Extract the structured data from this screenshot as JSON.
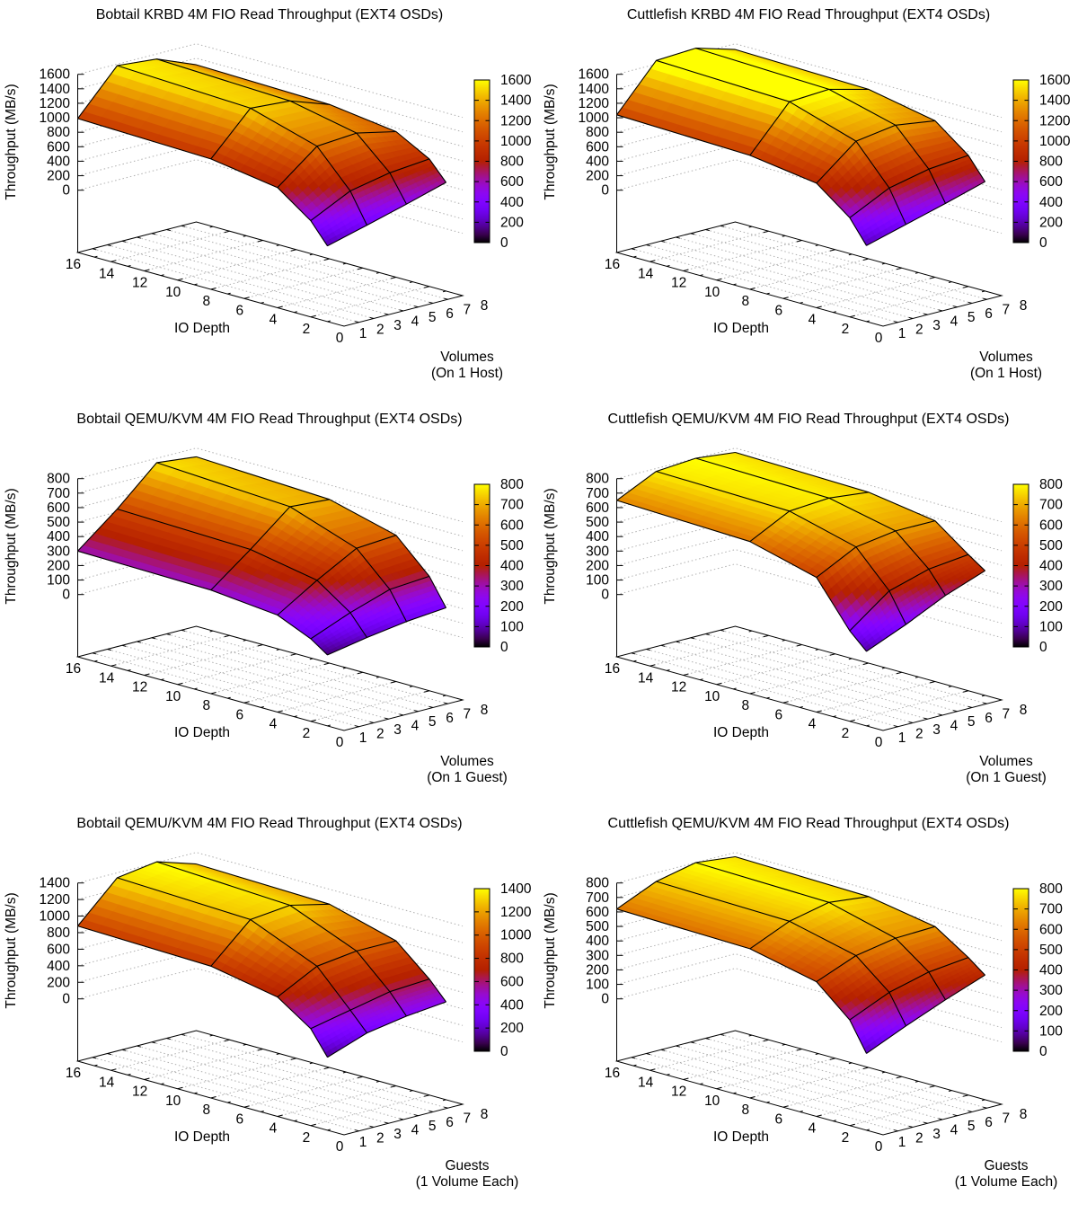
{
  "background": "#ffffff",
  "text_color": "#000000",
  "palette": {
    "type": "gnuplot pm3d rgbformulae 7,5,15",
    "low": "#000000",
    "mid": "#c83c00",
    "high": "#ffff00"
  },
  "chart_data": [
    {
      "type": "surface",
      "title": "Bobtail KRBD 4M FIO Read Throughput (EXT4 OSDs)",
      "xlabel": "IO Depth",
      "ylabel_line1": "Volumes",
      "ylabel_line2": "(On 1 Host)",
      "zlabel": "Throughput (MB/s)",
      "units": "MB/s",
      "x_ticks": [
        16,
        14,
        12,
        10,
        8,
        6,
        4,
        2,
        0
      ],
      "y_ticks": [
        0,
        1,
        2,
        3,
        4,
        5,
        6,
        7,
        8
      ],
      "z_ticks": [
        0,
        200,
        400,
        600,
        800,
        1000,
        1200,
        1400,
        1600
      ],
      "colorbar_ticks": [
        0,
        200,
        400,
        600,
        800,
        1000,
        1200,
        1400,
        1600
      ],
      "z_max": 1600,
      "z_step": 200,
      "io_depths": [
        16,
        8,
        4,
        2,
        1
      ],
      "series": [
        {
          "count": 1,
          "values": [
            990,
            940,
            800,
            470,
            185
          ]
        },
        {
          "count": 2,
          "values": [
            1580,
            1500,
            1230,
            740,
            330
          ]
        },
        {
          "count": 4,
          "values": [
            1530,
            1460,
            1270,
            850,
            480
          ]
        },
        {
          "count": 8,
          "values": [
            1310,
            1270,
            1150,
            900,
            640
          ]
        }
      ]
    },
    {
      "type": "surface",
      "title": "Cuttlefish KRBD 4M FIO Read Throughput (EXT4 OSDs)",
      "xlabel": "IO Depth",
      "ylabel_line1": "Volumes",
      "ylabel_line2": "(On 1 Host)",
      "zlabel": "Throughput (MB/s)",
      "units": "MB/s",
      "x_ticks": [
        16,
        14,
        12,
        10,
        8,
        6,
        4,
        2,
        0
      ],
      "y_ticks": [
        0,
        1,
        2,
        3,
        4,
        5,
        6,
        7,
        8
      ],
      "z_ticks": [
        0,
        200,
        400,
        600,
        800,
        1000,
        1200,
        1400,
        1600
      ],
      "colorbar_ticks": [
        0,
        200,
        400,
        600,
        800,
        1000,
        1200,
        1400,
        1600
      ],
      "z_max": 1600,
      "z_step": 200,
      "io_depths": [
        16,
        8,
        4,
        2,
        1
      ],
      "series": [
        {
          "count": 1,
          "values": [
            1040,
            990,
            860,
            510,
            190
          ]
        },
        {
          "count": 2,
          "values": [
            1650,
            1590,
            1300,
            780,
            340
          ]
        },
        {
          "count": 4,
          "values": [
            1680,
            1620,
            1380,
            900,
            490
          ]
        },
        {
          "count": 8,
          "values": [
            1520,
            1480,
            1300,
            950,
            650
          ]
        }
      ]
    },
    {
      "type": "surface",
      "title": "Bobtail QEMU/KVM 4M FIO Read Throughput (EXT4 OSDs)",
      "xlabel": "IO Depth",
      "ylabel_line1": "Volumes",
      "ylabel_line2": "(On 1 Guest)",
      "zlabel": "Throughput (MB/s)",
      "units": "MB/s",
      "x_ticks": [
        16,
        14,
        12,
        10,
        8,
        6,
        4,
        2,
        0
      ],
      "y_ticks": [
        0,
        1,
        2,
        3,
        4,
        5,
        6,
        7,
        8
      ],
      "z_ticks": [
        0,
        100,
        200,
        300,
        400,
        500,
        600,
        700,
        800
      ],
      "colorbar_ticks": [
        0,
        100,
        200,
        300,
        400,
        500,
        600,
        700,
        800
      ],
      "z_max": 800,
      "z_step": 100,
      "io_depths": [
        16,
        8,
        4,
        2,
        1
      ],
      "series": [
        {
          "count": 1,
          "values": [
            300,
            285,
            240,
            140,
            60
          ]
        },
        {
          "count": 2,
          "values": [
            520,
            495,
            410,
            250,
            110
          ]
        },
        {
          "count": 4,
          "values": [
            770,
            720,
            560,
            340,
            150
          ]
        },
        {
          "count": 8,
          "values": [
            740,
            700,
            580,
            360,
            175
          ]
        }
      ]
    },
    {
      "type": "surface",
      "title": "Cuttlefish QEMU/KVM 4M FIO Read Throughput (EXT4 OSDs)",
      "xlabel": "IO Depth",
      "ylabel_line1": "Volumes",
      "ylabel_line2": "(On 1 Guest)",
      "zlabel": "Throughput (MB/s)",
      "units": "MB/s",
      "x_ticks": [
        16,
        14,
        12,
        10,
        8,
        6,
        4,
        2,
        0
      ],
      "y_ticks": [
        0,
        1,
        2,
        3,
        4,
        5,
        6,
        7,
        8
      ],
      "z_ticks": [
        0,
        100,
        200,
        300,
        400,
        500,
        600,
        700,
        800
      ],
      "colorbar_ticks": [
        0,
        100,
        200,
        300,
        400,
        500,
        600,
        700,
        800
      ],
      "z_max": 800,
      "z_step": 100,
      "io_depths": [
        16,
        8,
        4,
        2,
        1
      ],
      "series": [
        {
          "count": 1,
          "values": [
            650,
            620,
            500,
            195,
            85
          ]
        },
        {
          "count": 2,
          "values": [
            780,
            760,
            640,
            400,
            200
          ]
        },
        {
          "count": 4,
          "values": [
            800,
            780,
            680,
            480,
            330
          ]
        },
        {
          "count": 8,
          "values": [
            770,
            750,
            680,
            510,
            430
          ]
        }
      ]
    },
    {
      "type": "surface",
      "title": "Bobtail QEMU/KVM 4M FIO Read Throughput (EXT4 OSDs)",
      "xlabel": "IO Depth",
      "ylabel_line1": "Guests",
      "ylabel_line2": "(1 Volume Each)",
      "zlabel": "Throughput (MB/s)",
      "units": "MB/s",
      "x_ticks": [
        16,
        14,
        12,
        10,
        8,
        6,
        4,
        2,
        0
      ],
      "y_ticks": [
        0,
        1,
        2,
        3,
        4,
        5,
        6,
        7,
        8
      ],
      "z_ticks": [
        0,
        200,
        400,
        600,
        800,
        1000,
        1200,
        1400
      ],
      "colorbar_ticks": [
        0,
        200,
        400,
        600,
        800,
        1000,
        1200,
        1400
      ],
      "z_max": 1400,
      "z_step": 200,
      "io_depths": [
        16,
        8,
        4,
        2,
        1
      ],
      "series": [
        {
          "count": 1,
          "values": [
            880,
            840,
            690,
            420,
            130
          ]
        },
        {
          "count": 2,
          "values": [
            1340,
            1280,
            940,
            520,
            300
          ]
        },
        {
          "count": 4,
          "values": [
            1410,
            1330,
            1000,
            620,
            380
          ]
        },
        {
          "count": 8,
          "values": [
            1260,
            1220,
            1000,
            650,
            430
          ]
        }
      ]
    },
    {
      "type": "surface",
      "title": "Cuttlefish QEMU/KVM 4M FIO Read Throughput (EXT4 OSDs)",
      "xlabel": "IO Depth",
      "ylabel_line1": "Guests",
      "ylabel_line2": "(1 Volume Each)",
      "zlabel": "Throughput (MB/s)",
      "units": "MB/s",
      "x_ticks": [
        16,
        14,
        12,
        10,
        8,
        6,
        4,
        2,
        0
      ],
      "y_ticks": [
        0,
        1,
        2,
        3,
        4,
        5,
        6,
        7,
        8
      ],
      "z_ticks": [
        0,
        100,
        200,
        300,
        400,
        500,
        600,
        700,
        800
      ],
      "colorbar_ticks": [
        0,
        100,
        200,
        300,
        400,
        500,
        600,
        700,
        800
      ],
      "z_max": 800,
      "z_step": 100,
      "io_depths": [
        16,
        8,
        4,
        2,
        1
      ],
      "series": [
        {
          "count": 1,
          "values": [
            620,
            600,
            500,
            300,
            100
          ]
        },
        {
          "count": 2,
          "values": [
            740,
            720,
            610,
            420,
            220
          ]
        },
        {
          "count": 4,
          "values": [
            800,
            780,
            660,
            490,
            330
          ]
        },
        {
          "count": 8,
          "values": [
            770,
            750,
            670,
            520,
            430
          ]
        }
      ]
    }
  ]
}
